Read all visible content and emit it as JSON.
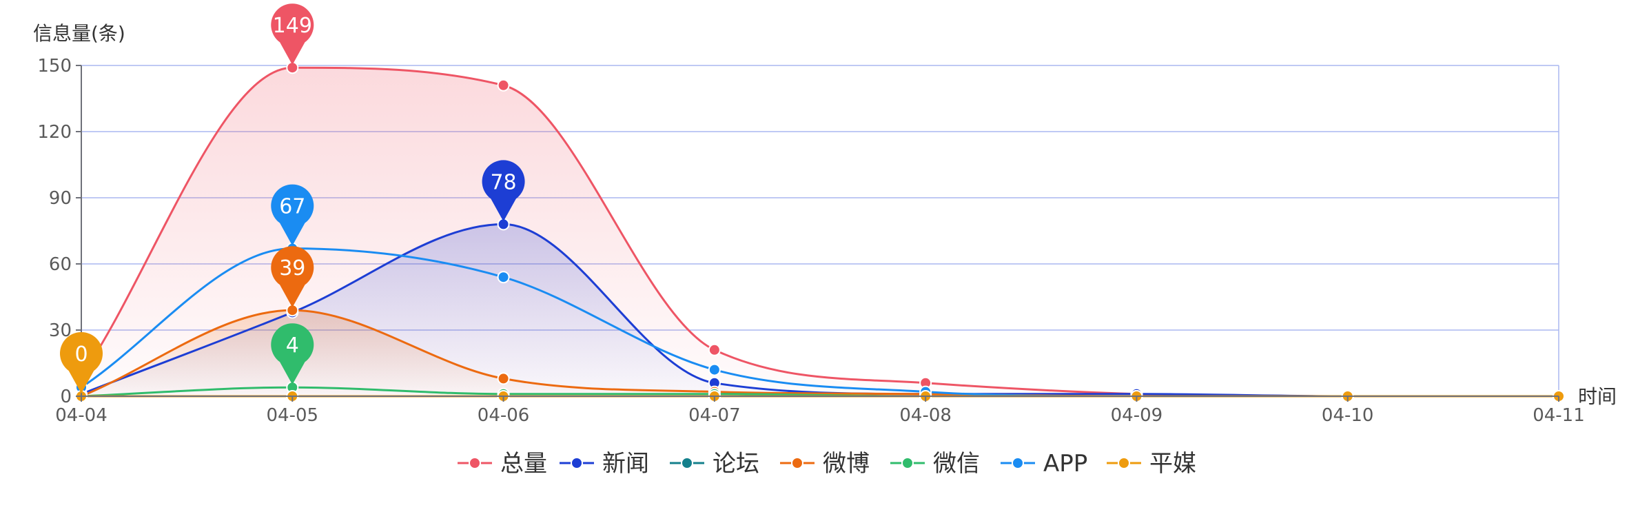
{
  "chart_data": {
    "type": "line",
    "ylabel": "信息量(条)",
    "xlabel": "时间",
    "categories": [
      "04-04",
      "04-05",
      "04-06",
      "04-07",
      "04-08",
      "04-09",
      "04-10",
      "04-11"
    ],
    "yticks": [
      0,
      30,
      60,
      90,
      120,
      150
    ],
    "ylim": [
      0,
      150
    ],
    "grid": true,
    "legend_position": "bottom-center",
    "series": [
      {
        "name": "总量",
        "color": "#ee5565",
        "area": true,
        "values": [
          9,
          149,
          141,
          21,
          6,
          1,
          0,
          0
        ]
      },
      {
        "name": "新闻",
        "color": "#1d3ed4",
        "area": true,
        "values": [
          1,
          38,
          78,
          6,
          1,
          1,
          0,
          0
        ]
      },
      {
        "name": "论坛",
        "color": "#14808c",
        "area": false,
        "values": [
          0,
          0,
          0,
          0,
          0,
          0,
          0,
          0
        ]
      },
      {
        "name": "微博",
        "color": "#ec6a10",
        "area": true,
        "values": [
          0,
          39,
          8,
          2,
          1,
          0,
          0,
          0
        ]
      },
      {
        "name": "微信",
        "color": "#30bc6c",
        "area": false,
        "values": [
          0,
          4,
          1,
          1,
          0,
          0,
          0,
          0
        ]
      },
      {
        "name": "APP",
        "color": "#1a8cf2",
        "area": false,
        "values": [
          4,
          67,
          54,
          12,
          2,
          0,
          0,
          0
        ]
      },
      {
        "name": "平媒",
        "color": "#ee9b0e",
        "area": false,
        "values": [
          0,
          0,
          0,
          0,
          0,
          0,
          0,
          0
        ]
      }
    ],
    "markers": [
      {
        "series": "总量",
        "x": "04-05",
        "value": 149
      },
      {
        "series": "新闻",
        "x": "04-06",
        "value": 78
      },
      {
        "series": "APP",
        "x": "04-05",
        "value": 67
      },
      {
        "series": "微博",
        "x": "04-05",
        "value": 39
      },
      {
        "series": "微信",
        "x": "04-05",
        "value": 4
      },
      {
        "series": "平媒",
        "x": "04-04",
        "value": 0
      }
    ]
  }
}
